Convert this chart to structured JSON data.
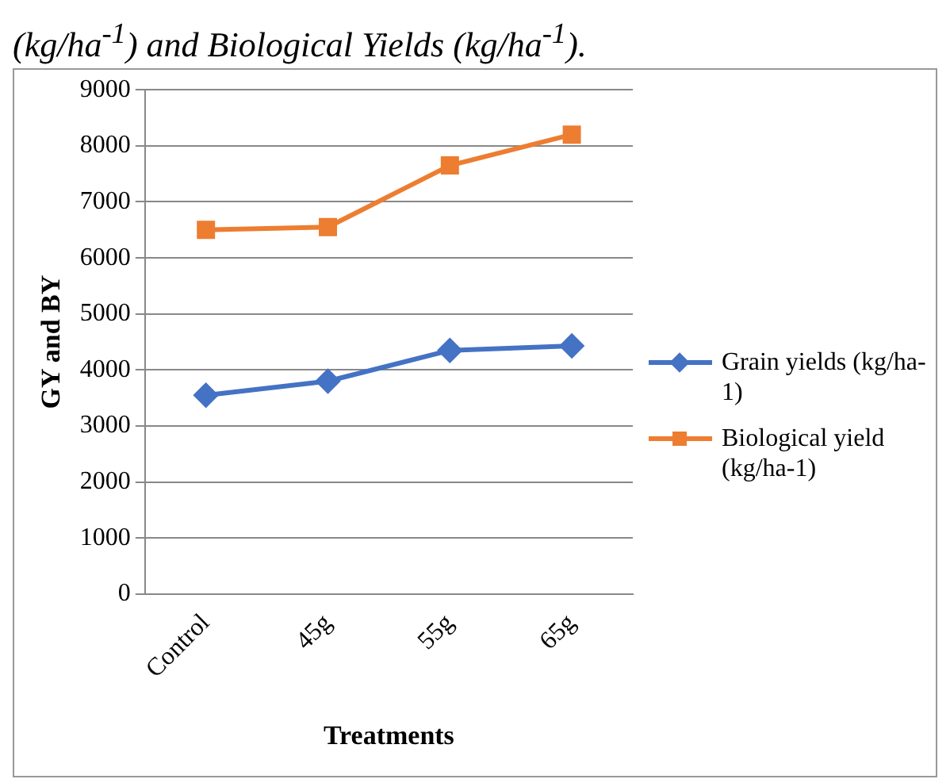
{
  "chart_data": {
    "type": "line",
    "title": "(kg/ha$^{-1}$) and Biological Yields (kg/ha$^{-1}$).",
    "xlabel": "Treatments",
    "ylabel": "GY and BY",
    "categories": [
      "Control",
      "45g",
      "55g",
      "65g"
    ],
    "series": [
      {
        "name": "Grain yields (kg/ha-1)",
        "color": "#4472c4",
        "values": [
          3550,
          3800,
          4350,
          4430
        ],
        "marker": "diamond"
      },
      {
        "name": "Biological yield (kg/ha-1)",
        "color": "#ed7d31",
        "values": [
          6500,
          6550,
          7650,
          8200
        ],
        "marker": "square"
      }
    ],
    "ylim": [
      0,
      9000
    ],
    "yticks": [
      0,
      1000,
      2000,
      3000,
      4000,
      5000,
      6000,
      7000,
      8000,
      9000
    ],
    "grid": "y",
    "legend": "right",
    "line_style": "solid"
  }
}
